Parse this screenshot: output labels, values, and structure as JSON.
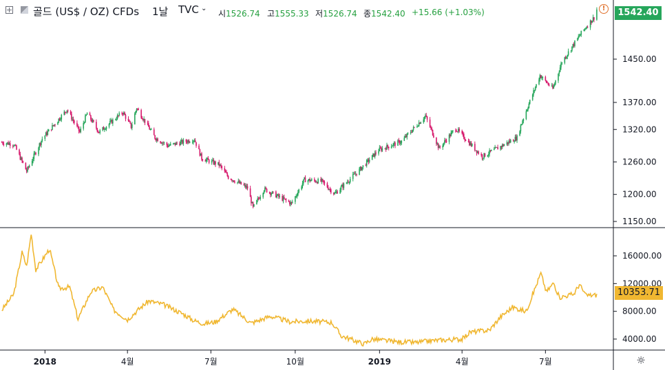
{
  "header": {
    "symbol": "골드 (US$ / OZ) CFDs",
    "interval": "1날",
    "source": "TVC",
    "open_label": "시",
    "open_value": "1526.74",
    "high_label": "고",
    "high_value": "1555.33",
    "low_label": "저",
    "low_value": "1526.74",
    "close_label": "종",
    "close_value": "1542.40",
    "change": "+15.66 (+1.03%)"
  },
  "colors": {
    "up": "#26a65b",
    "down": "#d6186b",
    "indicator": "#f0b731",
    "text": "#131722",
    "grid": "#e0e3eb"
  },
  "icons": [
    "expand-icon",
    "square-icon",
    "chevron-down-icon",
    "alert-icon",
    "settings-icon"
  ],
  "chart_data": [
    {
      "type": "candlestick",
      "name": "골드 (US$ / OZ) CFDs",
      "y_ticks": [
        "1450.00",
        "1370.00",
        "1320.00",
        "1260.00",
        "1200.00",
        "1150.00"
      ],
      "ylim": [
        1150,
        1560
      ],
      "last_price": "1542.40",
      "anchors": [
        [
          "2017-11-15",
          1296
        ],
        [
          "2017-11-28",
          1293
        ],
        [
          "2017-12-12",
          1243
        ],
        [
          "2017-12-29",
          1303
        ],
        [
          "2018-01-25",
          1357
        ],
        [
          "2018-02-08",
          1315
        ],
        [
          "2018-02-16",
          1350
        ],
        [
          "2018-03-01",
          1315
        ],
        [
          "2018-03-27",
          1352
        ],
        [
          "2018-04-05",
          1325
        ],
        [
          "2018-04-11",
          1360
        ],
        [
          "2018-05-01",
          1305
        ],
        [
          "2018-05-15",
          1290
        ],
        [
          "2018-06-13",
          1302
        ],
        [
          "2018-06-21",
          1267
        ],
        [
          "2018-07-10",
          1255
        ],
        [
          "2018-07-20",
          1232
        ],
        [
          "2018-08-10",
          1212
        ],
        [
          "2018-08-16",
          1175
        ],
        [
          "2018-08-28",
          1210
        ],
        [
          "2018-09-27",
          1183
        ],
        [
          "2018-10-11",
          1227
        ],
        [
          "2018-10-30",
          1224
        ],
        [
          "2018-11-13",
          1201
        ],
        [
          "2018-12-10",
          1245
        ],
        [
          "2018-12-31",
          1282
        ],
        [
          "2019-01-25",
          1298
        ],
        [
          "2019-02-20",
          1345
        ],
        [
          "2019-03-07",
          1285
        ],
        [
          "2019-03-25",
          1322
        ],
        [
          "2019-04-23",
          1270
        ],
        [
          "2019-05-31",
          1305
        ],
        [
          "2019-06-06",
          1337
        ],
        [
          "2019-06-25",
          1420
        ],
        [
          "2019-07-09",
          1395
        ],
        [
          "2019-07-19",
          1445
        ],
        [
          "2019-08-09",
          1498
        ],
        [
          "2019-08-16",
          1513
        ],
        [
          "2019-08-23",
          1527
        ],
        [
          "2019-08-26",
          1542
        ]
      ]
    },
    {
      "type": "line",
      "last_value": "10353.71",
      "y_ticks": [
        "16000.00",
        "12000.00",
        "8000.00",
        "4000.00"
      ],
      "ylim": [
        3000,
        19000
      ],
      "anchors": [
        [
          "2017-11-15",
          8200
        ],
        [
          "2017-11-28",
          10500
        ],
        [
          "2017-12-07",
          16500
        ],
        [
          "2017-12-12",
          14500
        ],
        [
          "2017-12-17",
          19200
        ],
        [
          "2017-12-22",
          14000
        ],
        [
          "2018-01-06",
          17000
        ],
        [
          "2018-01-16",
          11300
        ],
        [
          "2018-01-28",
          11500
        ],
        [
          "2018-02-06",
          6900
        ],
        [
          "2018-02-20",
          10800
        ],
        [
          "2018-03-05",
          11500
        ],
        [
          "2018-03-17",
          8200
        ],
        [
          "2018-04-01",
          6800
        ],
        [
          "2018-04-15",
          8500
        ],
        [
          "2018-04-24",
          9500
        ],
        [
          "2018-05-10",
          9000
        ],
        [
          "2018-06-01",
          7600
        ],
        [
          "2018-06-12",
          6700
        ],
        [
          "2018-06-24",
          6200
        ],
        [
          "2018-07-06",
          6500
        ],
        [
          "2018-07-25",
          8300
        ],
        [
          "2018-08-14",
          6300
        ],
        [
          "2018-09-04",
          7300
        ],
        [
          "2018-09-25",
          6500
        ],
        [
          "2018-10-15",
          6600
        ],
        [
          "2018-11-10",
          6400
        ],
        [
          "2018-11-20",
          4500
        ],
        [
          "2018-12-15",
          3300
        ],
        [
          "2018-12-24",
          4000
        ],
        [
          "2019-01-20",
          3600
        ],
        [
          "2019-02-10",
          3500
        ],
        [
          "2019-03-01",
          3800
        ],
        [
          "2019-04-01",
          4000
        ],
        [
          "2019-04-10",
          5000
        ],
        [
          "2019-05-01",
          5300
        ],
        [
          "2019-05-13",
          7200
        ],
        [
          "2019-05-26",
          8600
        ],
        [
          "2019-06-10",
          8000
        ],
        [
          "2019-06-26",
          13500
        ],
        [
          "2019-07-02",
          10800
        ],
        [
          "2019-07-10",
          12100
        ],
        [
          "2019-07-16",
          10000
        ],
        [
          "2019-08-01",
          10500
        ],
        [
          "2019-08-07",
          11900
        ],
        [
          "2019-08-14",
          10300
        ],
        [
          "2019-08-26",
          10350
        ]
      ]
    }
  ],
  "x_ticks": [
    {
      "date": "2018-01-01",
      "label": "2018",
      "bold": true
    },
    {
      "date": "2018-04-01",
      "label": "4월",
      "bold": false
    },
    {
      "date": "2018-07-01",
      "label": "7월",
      "bold": false
    },
    {
      "date": "2018-10-01",
      "label": "10월",
      "bold": false
    },
    {
      "date": "2019-01-01",
      "label": "2019",
      "bold": true
    },
    {
      "date": "2019-04-01",
      "label": "4월",
      "bold": false
    },
    {
      "date": "2019-07-01",
      "label": "7월",
      "bold": false
    }
  ]
}
